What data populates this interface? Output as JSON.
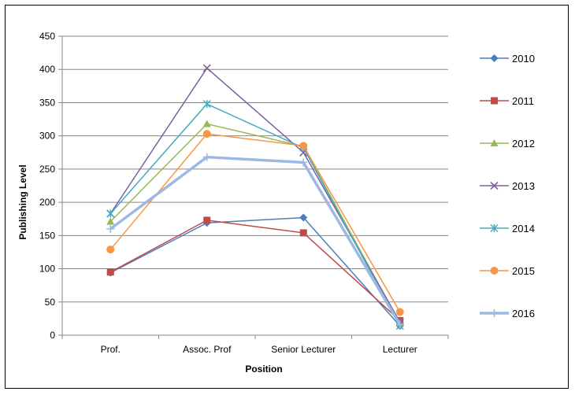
{
  "chart_data": {
    "type": "line",
    "categories": [
      "Prof.",
      "Assoc. Prof",
      "Senior Lecturer",
      "Lecturer"
    ],
    "xlabel": "Position",
    "ylabel": "Publishing Level",
    "ylim": [
      0,
      450
    ],
    "yticks": [
      0,
      50,
      100,
      150,
      200,
      250,
      300,
      350,
      400,
      450
    ],
    "grid": true,
    "legend": "right",
    "series": [
      {
        "name": "2010",
        "values": [
          94,
          169,
          177,
          14
        ],
        "color": "#4a7ebb",
        "marker": "diamond"
      },
      {
        "name": "2011",
        "values": [
          95,
          173,
          154,
          22
        ],
        "color": "#be4b48",
        "marker": "square"
      },
      {
        "name": "2012",
        "values": [
          171,
          318,
          284,
          18
        ],
        "color": "#98b954",
        "marker": "triangle"
      },
      {
        "name": "2013",
        "values": [
          183,
          402,
          275,
          20
        ],
        "color": "#7d60a0",
        "marker": "x"
      },
      {
        "name": "2014",
        "values": [
          183,
          348,
          282,
          14
        ],
        "color": "#46aac5",
        "marker": "star"
      },
      {
        "name": "2015",
        "values": [
          129,
          303,
          285,
          35
        ],
        "color": "#f79646",
        "marker": "circle"
      },
      {
        "name": "2016",
        "values": [
          160,
          268,
          260,
          16
        ],
        "color": "#9db9e3",
        "marker": "plus",
        "thick": true
      }
    ]
  }
}
